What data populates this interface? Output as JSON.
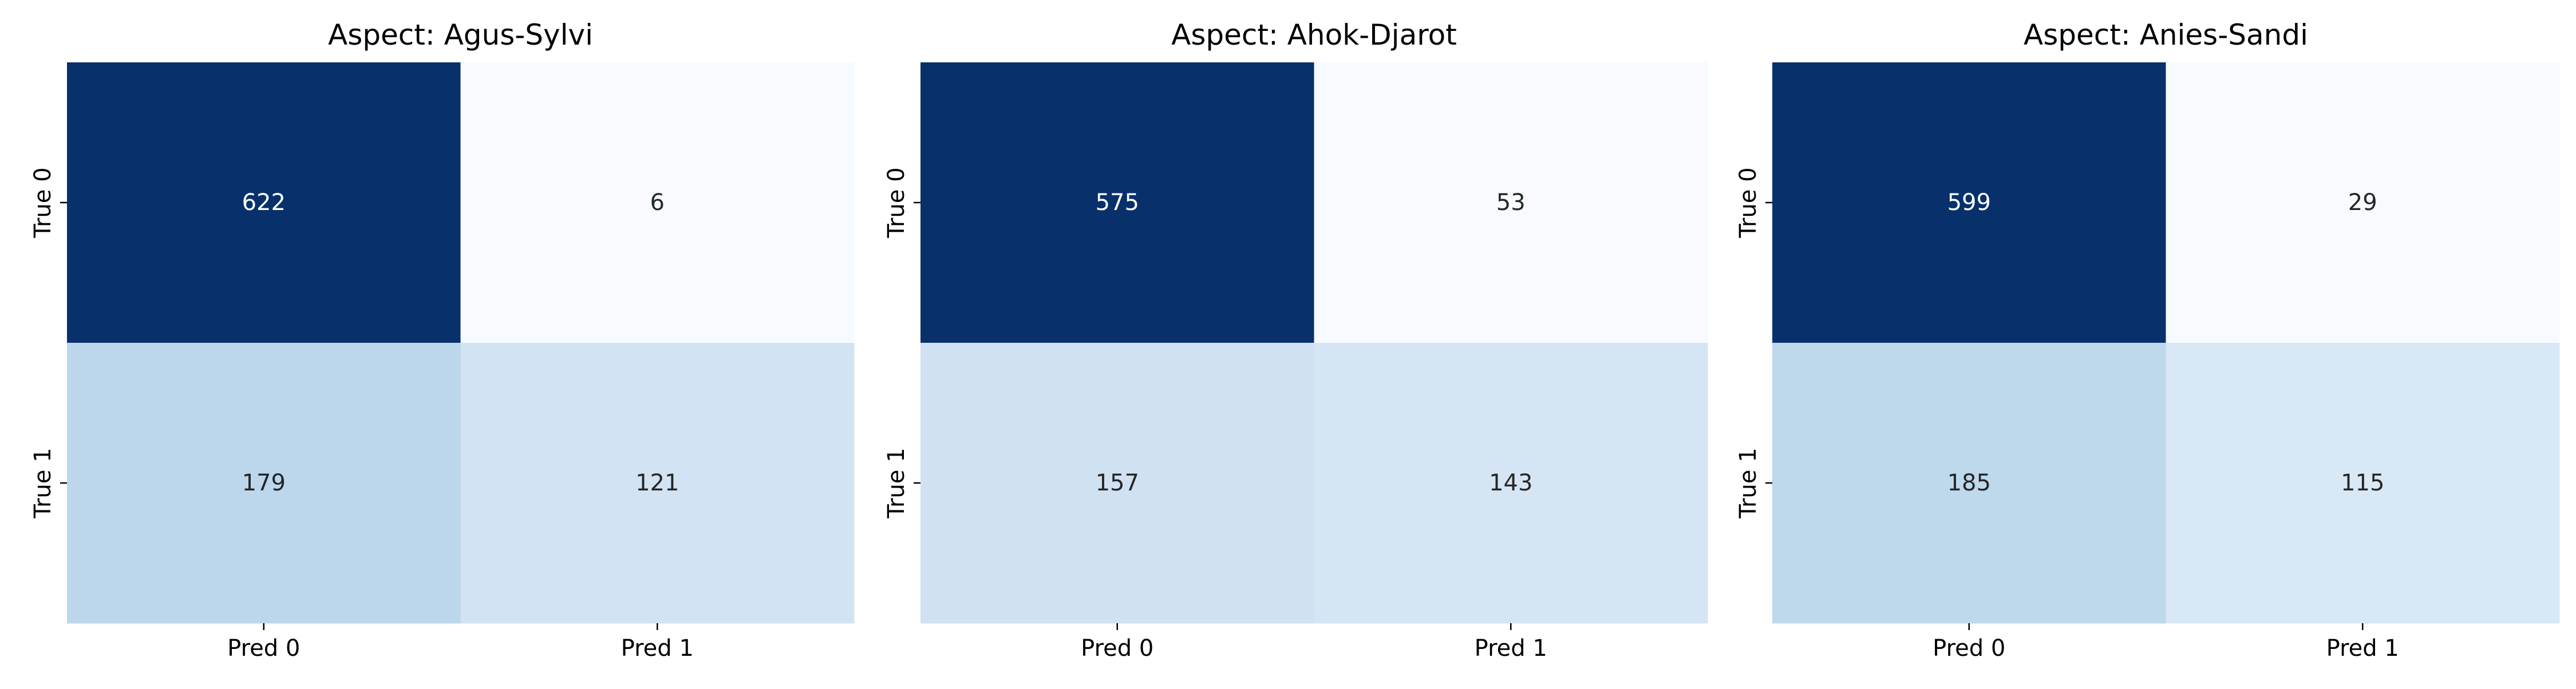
{
  "chart_data": [
    {
      "type": "heatmap",
      "title": "Aspect: Agus-Sylvi",
      "x_categories": [
        "Pred 0",
        "Pred 1"
      ],
      "y_categories": [
        "True 0",
        "True 1"
      ],
      "values": [
        [
          622,
          6
        ],
        [
          179,
          121
        ]
      ],
      "colormap": "Blues",
      "colorbar": false,
      "grid": false
    },
    {
      "type": "heatmap",
      "title": "Aspect: Ahok-Djarot",
      "x_categories": [
        "Pred 0",
        "Pred 1"
      ],
      "y_categories": [
        "True 0",
        "True 1"
      ],
      "values": [
        [
          575,
          53
        ],
        [
          157,
          143
        ]
      ],
      "colormap": "Blues",
      "colorbar": false,
      "grid": false
    },
    {
      "type": "heatmap",
      "title": "Aspect: Anies-Sandi",
      "x_categories": [
        "Pred 0",
        "Pred 1"
      ],
      "y_categories": [
        "True 0",
        "True 1"
      ],
      "values": [
        [
          599,
          29
        ],
        [
          185,
          115
        ]
      ],
      "colormap": "Blues",
      "colorbar": false,
      "grid": false
    }
  ]
}
